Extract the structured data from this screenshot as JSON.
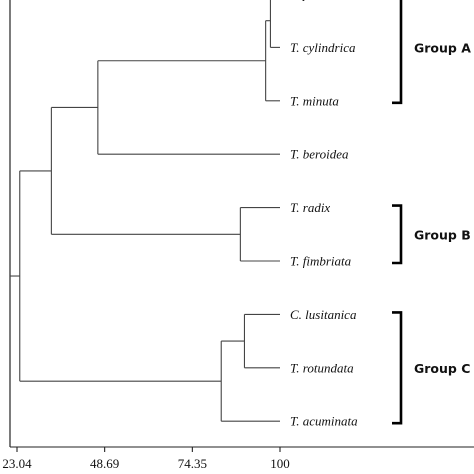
{
  "scale": {
    "min": 23.04,
    "max": 100,
    "ticks": [
      {
        "value": 23.04,
        "label": "23.04"
      },
      {
        "value": 48.69,
        "label": "48.69"
      },
      {
        "value": 74.35,
        "label": "74.35"
      },
      {
        "value": 100,
        "label": "100"
      }
    ]
  },
  "leaves": [
    {
      "key": "t_top",
      "label": "T. p"
    },
    {
      "key": "t_cylindrica",
      "label": "T. cylindrica"
    },
    {
      "key": "t_minuta",
      "label": "T. minuta"
    },
    {
      "key": "t_beroidea",
      "label": "T. beroidea"
    },
    {
      "key": "t_radix",
      "label": "T. radix"
    },
    {
      "key": "t_fimbriata",
      "label": "T.  fimbriata"
    },
    {
      "key": "c_lusitanica",
      "label": "C. lusitanica"
    },
    {
      "key": "t_rotundata",
      "label": "T. rotundata"
    },
    {
      "key": "t_acuminata",
      "label": "T. acuminata"
    }
  ],
  "merges": [
    {
      "id": "n1",
      "children": [
        "t_top",
        "t_cylindrica"
      ],
      "similarity": 97.2
    },
    {
      "id": "n2",
      "children": [
        "n1",
        "t_minuta"
      ],
      "similarity": 95.8
    },
    {
      "id": "n3",
      "children": [
        "n2",
        "t_beroidea"
      ],
      "similarity": 46.7
    },
    {
      "id": "n4",
      "children": [
        "t_radix",
        "t_fimbriata"
      ],
      "similarity": 88.4
    },
    {
      "id": "n5",
      "children": [
        "n3",
        "n4"
      ],
      "similarity": 33.1
    },
    {
      "id": "n6",
      "children": [
        "c_lusitanica",
        "t_rotundata"
      ],
      "similarity": 89.6
    },
    {
      "id": "n7",
      "children": [
        "n6",
        "t_acuminata"
      ],
      "similarity": 82.8
    },
    {
      "id": "root",
      "children": [
        "n5",
        "n7"
      ],
      "similarity": 23.85
    }
  ],
  "groups": [
    {
      "label": "Group A",
      "from": "t_top",
      "to": "t_minuta"
    },
    {
      "label": "Group B",
      "from": "t_radix",
      "to": "t_fimbriata"
    },
    {
      "label": "Group C",
      "from": "c_lusitanica",
      "to": "t_acuminata"
    }
  ],
  "colors": {
    "branch": "#444444",
    "bracket": "#000000",
    "text": "#111111"
  }
}
